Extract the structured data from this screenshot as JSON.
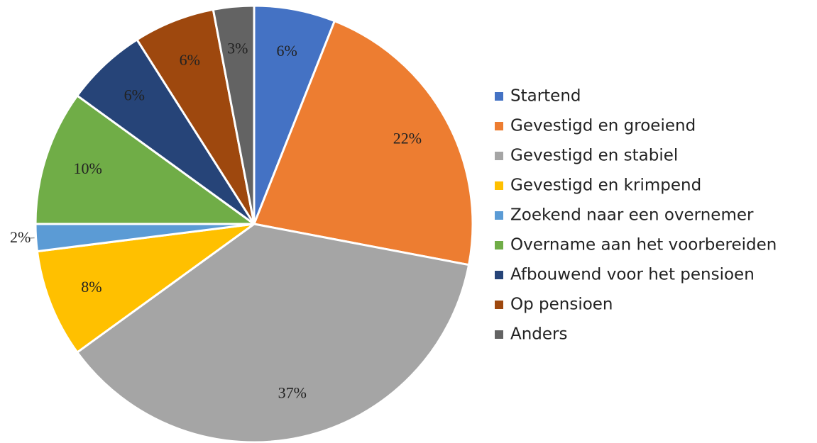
{
  "chart_data": {
    "type": "pie",
    "categories": [
      "Startend",
      "Gevestigd en groeiend",
      "Gevestigd en stabiel",
      "Gevestigd en krimpend",
      "Zoekend naar een overnemer",
      "Overname aan het voorbereiden",
      "Afbouwend voor het pensioen",
      "Op pensioen",
      "Anders"
    ],
    "values": [
      6,
      22,
      37,
      8,
      2,
      10,
      6,
      6,
      3
    ],
    "value_labels": [
      "6%",
      "22%",
      "37%",
      "8%",
      "2%",
      "10%",
      "6%",
      "6%",
      "3%"
    ],
    "colors": [
      "#4472c4",
      "#ed7d31",
      "#a5a5a5",
      "#ffc000",
      "#5b9bd5",
      "#70ad47",
      "#264478",
      "#9e480e",
      "#636363"
    ],
    "legend": "right"
  }
}
